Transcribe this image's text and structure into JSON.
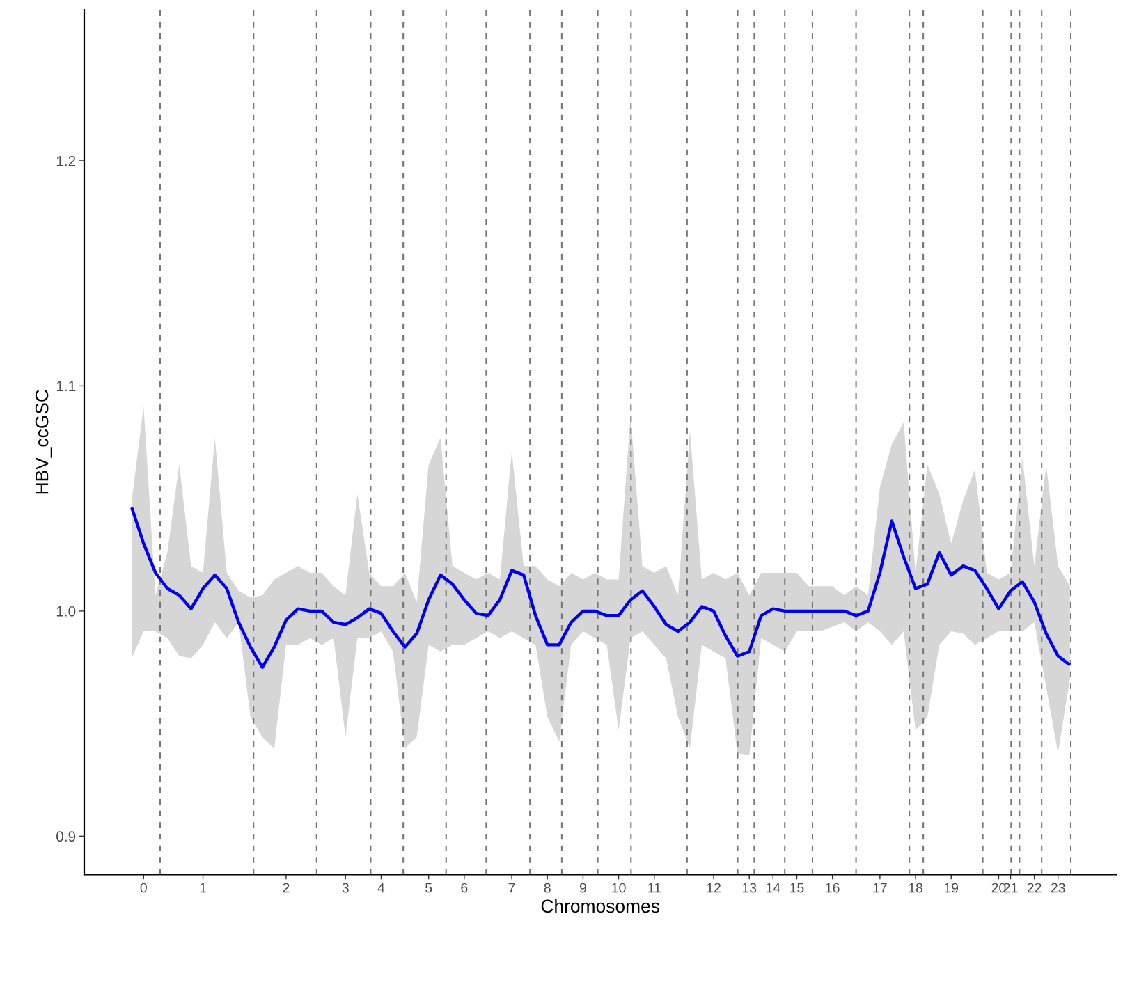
{
  "chart_data": {
    "type": "line",
    "xlabel": "Chromosomes",
    "ylabel": "HBV_ccGSC",
    "categories": [
      null,
      "0",
      null,
      null,
      null,
      null,
      "1",
      null,
      null,
      null,
      null,
      null,
      null,
      "2",
      null,
      null,
      null,
      null,
      "3",
      null,
      null,
      "4",
      null,
      null,
      null,
      "5",
      null,
      null,
      "6",
      null,
      null,
      null,
      "7",
      null,
      null,
      "8",
      null,
      null,
      "9",
      null,
      null,
      "10",
      null,
      null,
      "11",
      null,
      null,
      null,
      null,
      "12",
      null,
      null,
      "13",
      null,
      "14",
      null,
      "15",
      null,
      null,
      "16",
      null,
      null,
      null,
      "17",
      null,
      null,
      "18",
      null,
      null,
      "19",
      null,
      null,
      null,
      "20",
      "21",
      null,
      "22",
      null,
      "23",
      null
    ],
    "ylim": [
      0.883,
      1.267
    ],
    "yticks": [
      {
        "value": 0.9,
        "label": "0.9"
      },
      {
        "value": 1.0,
        "label": "1.0"
      },
      {
        "value": 1.1,
        "label": "1.1"
      },
      {
        "value": 1.2,
        "label": "1.2"
      }
    ],
    "grid": "x",
    "marker": "none",
    "line_style": "solid",
    "series": [
      {
        "color": "#0000ee",
        "values": [
          1.046,
          1.03,
          1.017,
          1.01,
          1.007,
          1.001,
          1.01,
          1.016,
          1.01,
          0.995,
          0.984,
          0.975,
          0.984,
          0.996,
          1.001,
          1.0,
          1.0,
          0.995,
          0.994,
          0.997,
          1.001,
          0.999,
          0.991,
          0.984,
          0.99,
          1.005,
          1.016,
          1.012,
          1.005,
          0.999,
          0.998,
          1.005,
          1.018,
          1.016,
          0.998,
          0.985,
          0.985,
          0.995,
          1.0,
          1.0,
          0.998,
          0.998,
          1.005,
          1.009,
          1.002,
          0.994,
          0.991,
          0.995,
          1.002,
          1.0,
          0.989,
          0.98,
          0.982,
          0.998,
          1.001,
          1.0,
          1.0,
          1.0,
          1.0,
          1.0,
          1.0,
          0.998,
          1.0,
          1.017,
          1.04,
          1.024,
          1.01,
          1.012,
          1.026,
          1.016,
          1.02,
          1.018,
          1.01,
          1.001,
          1.009,
          1.013,
          1.004,
          0.99,
          0.98,
          0.976
        ],
        "upper": [
          1.049,
          1.091,
          1.007,
          1.026,
          1.065,
          1.02,
          1.017,
          1.077,
          1.017,
          1.009,
          1.006,
          1.007,
          1.014,
          1.017,
          1.02,
          1.017,
          1.017,
          1.011,
          1.007,
          1.052,
          1.017,
          1.011,
          1.011,
          1.017,
          1.004,
          1.065,
          1.077,
          1.02,
          1.017,
          1.014,
          1.017,
          1.014,
          1.071,
          1.02,
          1.02,
          1.014,
          1.011,
          1.017,
          1.014,
          1.017,
          1.014,
          1.014,
          1.087,
          1.02,
          1.017,
          1.02,
          1.007,
          1.08,
          1.014,
          1.017,
          1.014,
          1.017,
          1.007,
          1.017,
          1.017,
          1.017,
          1.017,
          1.011,
          1.011,
          1.011,
          1.007,
          1.011,
          1.007,
          1.055,
          1.074,
          1.084,
          1.017,
          1.065,
          1.052,
          1.03,
          1.049,
          1.063,
          1.017,
          1.014,
          1.017,
          1.068,
          1.02,
          1.065,
          1.02,
          1.011
        ],
        "lower": [
          0.979,
          0.991,
          0.991,
          0.988,
          0.98,
          0.979,
          0.985,
          0.995,
          0.988,
          0.995,
          0.953,
          0.944,
          0.939,
          0.985,
          0.985,
          0.988,
          0.985,
          0.988,
          0.944,
          0.988,
          0.988,
          0.991,
          0.982,
          0.939,
          0.944,
          0.985,
          0.982,
          0.985,
          0.985,
          0.988,
          0.991,
          0.988,
          0.991,
          0.988,
          0.985,
          0.953,
          0.942,
          0.985,
          0.991,
          0.988,
          0.985,
          0.947,
          0.988,
          0.991,
          0.985,
          0.979,
          0.953,
          0.939,
          0.985,
          0.982,
          0.979,
          0.937,
          0.936,
          0.988,
          0.985,
          0.982,
          0.991,
          0.991,
          0.991,
          0.993,
          0.995,
          0.991,
          0.995,
          0.991,
          0.985,
          0.991,
          0.947,
          0.953,
          0.985,
          0.991,
          0.99,
          0.985,
          0.988,
          0.991,
          0.991,
          0.991,
          0.995,
          0.966,
          0.937,
          0.97
        ]
      }
    ]
  }
}
